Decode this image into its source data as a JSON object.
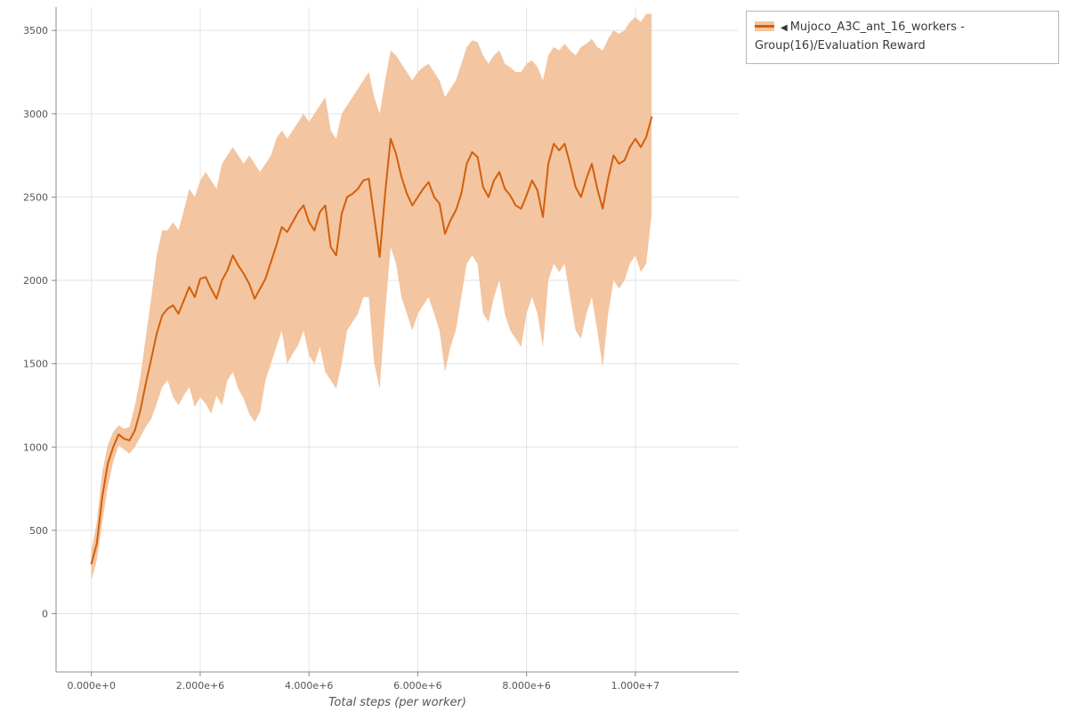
{
  "legend": {
    "marker": "◀",
    "label": "Mujoco_A3C_ant_16_workers - Group(16)/Evaluation Reward"
  },
  "colors": {
    "line": "#d35f0c",
    "band": "#f3c5a0",
    "grid": "#e3e3e3",
    "axis": "#8c8c8c",
    "text": "#555555",
    "background": "#ffffff"
  },
  "chart_data": {
    "type": "line",
    "title": "",
    "xlabel": "Total steps (per worker)",
    "ylabel": "",
    "grid": true,
    "legend_position": "top-right",
    "xlim": [
      -650000,
      11900000
    ],
    "ylim": [
      -350,
      3640
    ],
    "x_ticks": [
      0,
      2000000,
      4000000,
      6000000,
      8000000,
      10000000
    ],
    "x_tick_labels": [
      "0.000e+0",
      "2.000e+6",
      "4.000e+6",
      "6.000e+6",
      "8.000e+6",
      "1.000e+7"
    ],
    "y_ticks": [
      0,
      500,
      1000,
      1500,
      2000,
      2500,
      3000,
      3500
    ],
    "series": [
      {
        "name": "Mujoco_A3C_ant_16_workers - Group(16)/Evaluation Reward",
        "color": "#d35f0c",
        "band_color": "#f3c5a0",
        "x": [
          0,
          100000,
          200000,
          300000,
          400000,
          500000,
          600000,
          700000,
          800000,
          900000,
          1000000,
          1100000,
          1200000,
          1300000,
          1400000,
          1500000,
          1600000,
          1700000,
          1800000,
          1900000,
          2000000,
          2100000,
          2200000,
          2300000,
          2400000,
          2500000,
          2600000,
          2700000,
          2800000,
          2900000,
          3000000,
          3100000,
          3200000,
          3300000,
          3400000,
          3500000,
          3600000,
          3700000,
          3800000,
          3900000,
          4000000,
          4100000,
          4200000,
          4300000,
          4400000,
          4500000,
          4600000,
          4700000,
          4800000,
          4900000,
          5000000,
          5100000,
          5200000,
          5300000,
          5400000,
          5500000,
          5600000,
          5700000,
          5800000,
          5900000,
          6000000,
          6100000,
          6200000,
          6300000,
          6400000,
          6500000,
          6600000,
          6700000,
          6800000,
          6900000,
          7000000,
          7100000,
          7200000,
          7300000,
          7400000,
          7500000,
          7600000,
          7700000,
          7800000,
          7900000,
          8000000,
          8100000,
          8200000,
          8300000,
          8400000,
          8500000,
          8600000,
          8700000,
          8800000,
          8900000,
          9000000,
          9100000,
          9200000,
          9300000,
          9400000,
          9500000,
          9600000,
          9700000,
          9800000,
          9900000,
          10000000,
          10100000,
          10200000,
          10300000
        ],
        "mean": [
          300,
          420,
          700,
          900,
          1000,
          1075,
          1050,
          1040,
          1100,
          1220,
          1380,
          1530,
          1680,
          1790,
          1830,
          1850,
          1800,
          1880,
          1960,
          1900,
          2010,
          2020,
          1950,
          1890,
          2000,
          2060,
          2150,
          2090,
          2040,
          1980,
          1890,
          1950,
          2010,
          2110,
          2210,
          2320,
          2290,
          2350,
          2410,
          2450,
          2350,
          2300,
          2410,
          2450,
          2200,
          2150,
          2400,
          2500,
          2520,
          2550,
          2600,
          2610,
          2380,
          2140,
          2520,
          2850,
          2760,
          2620,
          2520,
          2450,
          2500,
          2550,
          2590,
          2500,
          2460,
          2280,
          2360,
          2420,
          2520,
          2700,
          2770,
          2740,
          2560,
          2500,
          2600,
          2650,
          2550,
          2510,
          2450,
          2430,
          2510,
          2600,
          2540,
          2380,
          2700,
          2820,
          2780,
          2820,
          2700,
          2560,
          2500,
          2610,
          2700,
          2550,
          2430,
          2610,
          2750,
          2700,
          2720,
          2800,
          2850,
          2800,
          2860,
          2980
        ],
        "lower": [
          200,
          320,
          550,
          760,
          910,
          1010,
          985,
          960,
          1000,
          1060,
          1120,
          1170,
          1260,
          1360,
          1400,
          1300,
          1250,
          1310,
          1360,
          1240,
          1300,
          1260,
          1200,
          1310,
          1250,
          1400,
          1450,
          1350,
          1290,
          1200,
          1150,
          1210,
          1400,
          1500,
          1600,
          1700,
          1500,
          1560,
          1610,
          1700,
          1550,
          1500,
          1600,
          1450,
          1400,
          1350,
          1500,
          1700,
          1750,
          1800,
          1900,
          1900,
          1500,
          1350,
          1800,
          2200,
          2100,
          1900,
          1800,
          1700,
          1800,
          1850,
          1900,
          1800,
          1700,
          1450,
          1600,
          1700,
          1900,
          2100,
          2150,
          2100,
          1800,
          1750,
          1900,
          2000,
          1800,
          1700,
          1650,
          1600,
          1800,
          1900,
          1800,
          1600,
          2000,
          2100,
          2050,
          2100,
          1900,
          1700,
          1650,
          1800,
          1900,
          1700,
          1480,
          1800,
          2000,
          1950,
          2000,
          2100,
          2150,
          2050,
          2100,
          2400
        ],
        "upper": [
          380,
          550,
          850,
          1010,
          1090,
          1130,
          1110,
          1120,
          1250,
          1420,
          1660,
          1900,
          2150,
          2300,
          2300,
          2350,
          2300,
          2420,
          2550,
          2500,
          2600,
          2650,
          2600,
          2550,
          2700,
          2750,
          2800,
          2750,
          2700,
          2750,
          2700,
          2650,
          2700,
          2750,
          2850,
          2900,
          2850,
          2900,
          2950,
          3000,
          2950,
          3000,
          3050,
          3100,
          2900,
          2850,
          3000,
          3050,
          3100,
          3150,
          3200,
          3250,
          3100,
          3000,
          3200,
          3380,
          3350,
          3300,
          3250,
          3200,
          3250,
          3280,
          3300,
          3250,
          3200,
          3100,
          3150,
          3200,
          3300,
          3400,
          3440,
          3430,
          3350,
          3300,
          3350,
          3380,
          3300,
          3280,
          3250,
          3250,
          3300,
          3320,
          3280,
          3200,
          3350,
          3400,
          3380,
          3420,
          3380,
          3350,
          3400,
          3420,
          3450,
          3400,
          3380,
          3450,
          3500,
          3480,
          3500,
          3550,
          3580,
          3550,
          3600,
          3600
        ]
      }
    ]
  }
}
